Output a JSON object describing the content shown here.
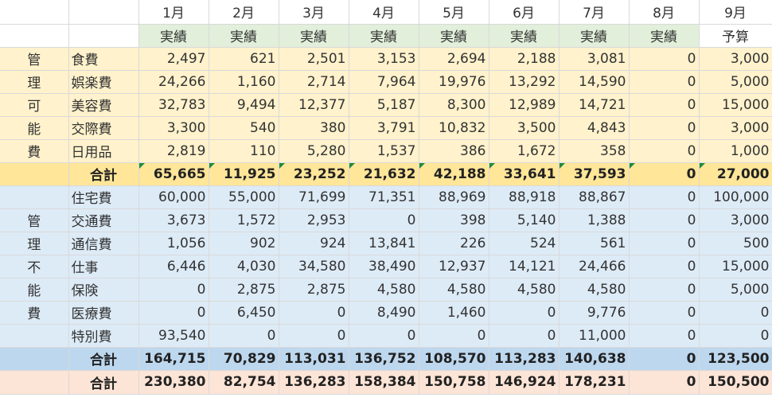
{
  "months": [
    "1月",
    "2月",
    "3月",
    "4月",
    "5月",
    "6月",
    "7月",
    "8月",
    "9月"
  ],
  "row_types": [
    "実績",
    "実績",
    "実績",
    "実績",
    "実績",
    "実績",
    "実績",
    "実績",
    "予算"
  ],
  "managed": {
    "label_chars": [
      "管",
      "理",
      "可",
      "能",
      "費"
    ],
    "items": [
      {
        "name": "食費",
        "values": [
          "2,497",
          "621",
          "2,501",
          "3,153",
          "2,694",
          "2,188",
          "3,081",
          "0",
          "3,000"
        ]
      },
      {
        "name": "娯楽費",
        "values": [
          "24,266",
          "1,160",
          "2,714",
          "7,964",
          "19,976",
          "13,292",
          "14,590",
          "0",
          "5,000"
        ]
      },
      {
        "name": "美容費",
        "values": [
          "32,783",
          "9,494",
          "12,377",
          "5,187",
          "8,300",
          "12,989",
          "14,721",
          "0",
          "15,000"
        ]
      },
      {
        "name": "交際費",
        "values": [
          "3,300",
          "540",
          "380",
          "3,791",
          "10,832",
          "3,500",
          "4,843",
          "0",
          "3,000"
        ]
      },
      {
        "name": "日用品",
        "values": [
          "2,819",
          "110",
          "5,280",
          "1,537",
          "386",
          "1,672",
          "358",
          "0",
          "1,000"
        ]
      }
    ],
    "total": {
      "label": "合計",
      "values": [
        "65,665",
        "11,925",
        "23,252",
        "21,632",
        "42,188",
        "33,641",
        "37,593",
        "0",
        "27,000"
      ]
    }
  },
  "unmanaged": {
    "label_chars": [
      "管",
      "理",
      "不",
      "能",
      "費"
    ],
    "items": [
      {
        "name": "住宅費",
        "values": [
          "60,000",
          "55,000",
          "71,699",
          "71,351",
          "88,969",
          "88,918",
          "88,867",
          "0",
          "100,000"
        ]
      },
      {
        "name": "交通費",
        "values": [
          "3,673",
          "1,572",
          "2,953",
          "0",
          "398",
          "5,140",
          "1,388",
          "0",
          "3,000"
        ]
      },
      {
        "name": "通信費",
        "values": [
          "1,056",
          "902",
          "924",
          "13,841",
          "226",
          "524",
          "561",
          "0",
          "500"
        ]
      },
      {
        "name": "仕事",
        "values": [
          "6,446",
          "4,030",
          "34,580",
          "38,490",
          "12,937",
          "14,121",
          "24,466",
          "0",
          "15,000"
        ]
      },
      {
        "name": "保険",
        "values": [
          "0",
          "2,875",
          "2,875",
          "4,580",
          "4,580",
          "4,580",
          "4,580",
          "0",
          "5,000"
        ]
      },
      {
        "name": "医療費",
        "values": [
          "0",
          "6,450",
          "0",
          "8,490",
          "1,460",
          "0",
          "9,776",
          "0",
          "0"
        ]
      },
      {
        "name": "特別費",
        "values": [
          "93,540",
          "0",
          "0",
          "0",
          "0",
          "0",
          "11,000",
          "0",
          "0"
        ]
      }
    ],
    "total": {
      "label": "合計",
      "values": [
        "164,715",
        "70,829",
        "113,031",
        "136,752",
        "108,570",
        "113,283",
        "140,638",
        "0",
        "123,500"
      ]
    }
  },
  "grand_total": {
    "label": "合計",
    "values": [
      "230,380",
      "82,754",
      "136,283",
      "158,384",
      "150,758",
      "146,924",
      "178,231",
      "0",
      "150,500"
    ]
  },
  "colors": {
    "header_green": "#e2efda",
    "managed_fill": "#fff2cc",
    "managed_total_fill": "#ffe699",
    "unmanaged_fill": "#ddebf7",
    "unmanaged_total_fill": "#bdd7ee",
    "grand_total_fill": "#fce4d6",
    "error_marker": "#1f8a3b"
  }
}
